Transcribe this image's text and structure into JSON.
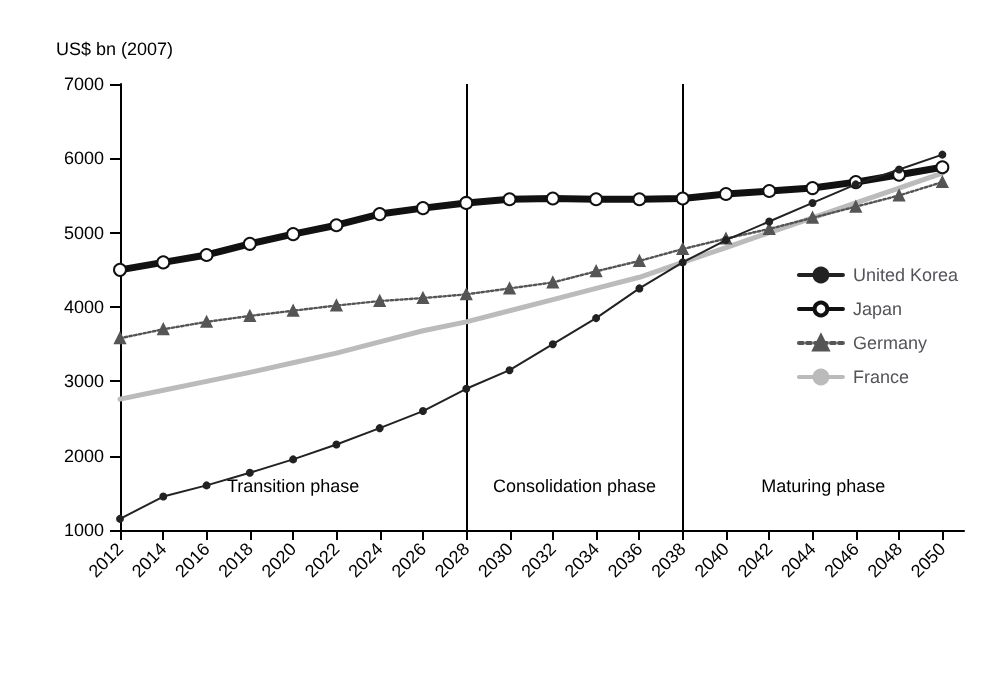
{
  "chart_data": {
    "type": "line",
    "ylabel": "US$ bn (2007)",
    "x": [
      2012,
      2014,
      2016,
      2018,
      2020,
      2022,
      2024,
      2026,
      2028,
      2030,
      2032,
      2034,
      2036,
      2038,
      2040,
      2042,
      2044,
      2046,
      2048,
      2050
    ],
    "xlim": [
      2012,
      2051
    ],
    "xticks": [
      2012,
      2014,
      2016,
      2018,
      2020,
      2022,
      2024,
      2026,
      2028,
      2030,
      2032,
      2034,
      2036,
      2038,
      2040,
      2042,
      2044,
      2046,
      2048,
      2050
    ],
    "ylim": [
      1000,
      7000
    ],
    "yticks": [
      1000,
      2000,
      3000,
      4000,
      5000,
      6000,
      7000
    ],
    "grid": false,
    "legend": "right",
    "series": [
      {
        "name": "United Korea",
        "color": "#222222",
        "marker": "circle",
        "line_style": "solid",
        "values": [
          1150,
          1450,
          1600,
          1770,
          1950,
          2150,
          2370,
          2600,
          2900,
          3150,
          3500,
          3850,
          4250,
          4600,
          4900,
          5150,
          5400,
          5650,
          5850,
          6050
        ]
      },
      {
        "name": "Japan",
        "color": "#111111",
        "marker": "circle",
        "line_style": "solid",
        "values": [
          4500,
          4600,
          4700,
          4850,
          4980,
          5100,
          5250,
          5330,
          5400,
          5450,
          5460,
          5450,
          5450,
          5460,
          5520,
          5560,
          5600,
          5680,
          5780,
          5880
        ]
      },
      {
        "name": "Germany",
        "color": "#555555",
        "marker": "triangle",
        "line_style": "dotted",
        "values": [
          3580,
          3700,
          3800,
          3880,
          3950,
          4020,
          4080,
          4120,
          4170,
          4250,
          4330,
          4480,
          4620,
          4780,
          4920,
          5050,
          5200,
          5350,
          5500,
          5680
        ]
      },
      {
        "name": "France",
        "color": "#bbbbbb",
        "marker": "none",
        "line_style": "solid",
        "values": [
          2760,
          2880,
          3000,
          3120,
          3250,
          3380,
          3530,
          3680,
          3800,
          3950,
          4100,
          4250,
          4400,
          4600,
          4800,
          5000,
          5200,
          5400,
          5600,
          5800
        ]
      }
    ],
    "ref_lines": [
      {
        "axis": "x",
        "value": 2028,
        "color": "#000000",
        "line_style": "solid"
      },
      {
        "axis": "x",
        "value": 2038,
        "color": "#000000",
        "line_style": "solid"
      }
    ],
    "annotations": [
      "Transition phase",
      "Consolidation phase",
      "Maturing phase"
    ]
  }
}
